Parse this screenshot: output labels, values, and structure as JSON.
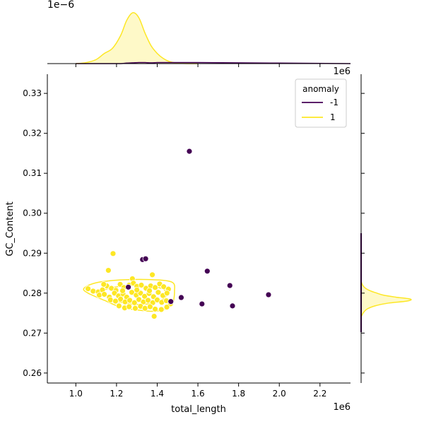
{
  "chart_data": {
    "type": "scatter",
    "xlabel": "total_length",
    "ylabel": "GC_Content",
    "x_offset_text": "1e6",
    "y_offset_text": "",
    "x_ticks": [
      1.0,
      1.2,
      1.4,
      1.6,
      1.8,
      2.0,
      2.2
    ],
    "x_tick_labels": [
      "1.0",
      "1.2",
      "1.4",
      "1.6",
      "1.8",
      "2.0",
      "2.2"
    ],
    "y_ticks": [
      0.26,
      0.27,
      0.28,
      0.29,
      0.3,
      0.31,
      0.32,
      0.33
    ],
    "y_tick_labels": [
      "0.26",
      "0.27",
      "0.28",
      "0.29",
      "0.30",
      "0.31",
      "0.32",
      "0.33"
    ],
    "xlim": [
      0.86,
      2.35
    ],
    "ylim": [
      0.2575,
      0.3348
    ],
    "grid": false,
    "legend": {
      "title": "anomaly",
      "placement": "top-right",
      "entries": [
        {
          "label": "-1",
          "color": "#440154"
        },
        {
          "label": "1",
          "color": "#fde725"
        }
      ]
    },
    "series": [
      {
        "name": "-1",
        "color": "#440154",
        "points": [
          [
            1.558,
            0.3155
          ],
          [
            1.328,
            0.2884
          ],
          [
            1.343,
            0.2886
          ],
          [
            1.646,
            0.2855
          ],
          [
            1.757,
            0.2819
          ],
          [
            1.947,
            0.2796
          ],
          [
            1.518,
            0.2789
          ],
          [
            1.62,
            0.2773
          ],
          [
            1.77,
            0.2768
          ],
          [
            1.258,
            0.2815
          ],
          [
            1.467,
            0.2779
          ]
        ]
      },
      {
        "name": "1",
        "color": "#fde725",
        "points": [
          [
            1.183,
            0.2899
          ],
          [
            1.16,
            0.2857
          ],
          [
            1.376,
            0.2846
          ],
          [
            1.278,
            0.2836
          ],
          [
            1.06,
            0.2811
          ],
          [
            1.085,
            0.2805
          ],
          [
            1.11,
            0.2803
          ],
          [
            1.131,
            0.2808
          ],
          [
            1.152,
            0.2818
          ],
          [
            1.175,
            0.2812
          ],
          [
            1.197,
            0.2807
          ],
          [
            1.218,
            0.2822
          ],
          [
            1.236,
            0.2814
          ],
          [
            1.262,
            0.282
          ],
          [
            1.283,
            0.2825
          ],
          [
            1.3,
            0.2817
          ],
          [
            1.322,
            0.282
          ],
          [
            1.345,
            0.2812
          ],
          [
            1.368,
            0.2818
          ],
          [
            1.39,
            0.2814
          ],
          [
            1.412,
            0.2823
          ],
          [
            1.432,
            0.2816
          ],
          [
            1.455,
            0.281
          ],
          [
            1.115,
            0.2795
          ],
          [
            1.14,
            0.2797
          ],
          [
            1.165,
            0.279
          ],
          [
            1.19,
            0.28
          ],
          [
            1.21,
            0.2793
          ],
          [
            1.232,
            0.2798
          ],
          [
            1.25,
            0.279
          ],
          [
            1.275,
            0.2802
          ],
          [
            1.297,
            0.2795
          ],
          [
            1.318,
            0.28
          ],
          [
            1.338,
            0.2792
          ],
          [
            1.36,
            0.2799
          ],
          [
            1.382,
            0.2791
          ],
          [
            1.405,
            0.2802
          ],
          [
            1.428,
            0.2794
          ],
          [
            1.448,
            0.28
          ],
          [
            1.17,
            0.2783
          ],
          [
            1.195,
            0.278
          ],
          [
            1.22,
            0.2785
          ],
          [
            1.242,
            0.2778
          ],
          [
            1.265,
            0.2782
          ],
          [
            1.288,
            0.2776
          ],
          [
            1.31,
            0.2784
          ],
          [
            1.332,
            0.2778
          ],
          [
            1.355,
            0.2782
          ],
          [
            1.378,
            0.2776
          ],
          [
            1.4,
            0.2783
          ],
          [
            1.422,
            0.2777
          ],
          [
            1.445,
            0.2781
          ],
          [
            1.465,
            0.2773
          ],
          [
            1.212,
            0.2768
          ],
          [
            1.24,
            0.2763
          ],
          [
            1.262,
            0.2766
          ],
          [
            1.292,
            0.2762
          ],
          [
            1.318,
            0.2767
          ],
          [
            1.34,
            0.2762
          ],
          [
            1.365,
            0.2766
          ],
          [
            1.39,
            0.276
          ],
          [
            1.42,
            0.2759
          ],
          [
            1.447,
            0.2765
          ],
          [
            1.385,
            0.2742
          ],
          [
            1.3,
            0.2808
          ],
          [
            1.23,
            0.2806
          ],
          [
            1.362,
            0.2806
          ],
          [
            1.137,
            0.2822
          ]
        ]
      }
    ],
    "top_marginal": {
      "offset_text": "1e−6",
      "x": [
        1.0,
        1.05,
        1.1,
        1.14,
        1.18,
        1.22,
        1.25,
        1.28,
        1.31,
        1.34,
        1.37,
        1.4,
        1.43,
        1.46,
        1.5,
        1.55,
        1.6
      ],
      "density": [
        0.0,
        0.02,
        0.08,
        0.2,
        0.3,
        0.55,
        0.85,
        1.0,
        0.9,
        0.6,
        0.35,
        0.2,
        0.1,
        0.04,
        0.01,
        0.0,
        0.0
      ],
      "outlier_density": [
        0.0,
        0.0,
        0.0,
        0.0,
        0.0,
        0.0,
        0.01,
        0.015,
        0.02,
        0.02,
        0.015,
        0.02,
        0.02,
        0.02,
        0.02,
        0.02,
        0.02
      ]
    },
    "right_marginal": {
      "y": [
        0.274,
        0.275,
        0.276,
        0.2768,
        0.2775,
        0.278,
        0.2785,
        0.279,
        0.2795,
        0.28,
        0.2805,
        0.2812,
        0.282,
        0.283
      ],
      "density": [
        0.0,
        0.04,
        0.12,
        0.28,
        0.55,
        0.92,
        1.0,
        0.7,
        0.45,
        0.32,
        0.2,
        0.09,
        0.03,
        0.0
      ]
    }
  }
}
